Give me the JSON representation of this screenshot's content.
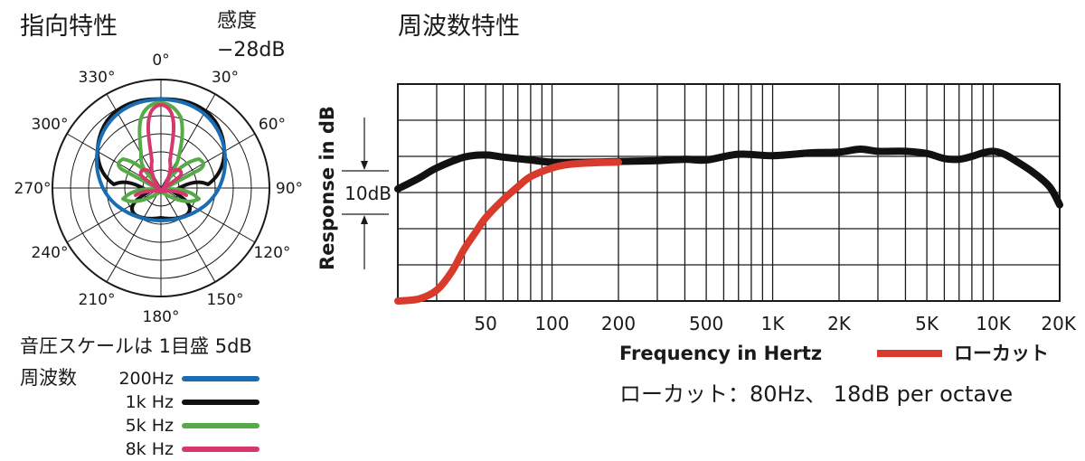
{
  "polar_chart": {
    "title": "指向特性",
    "sensitivity_label": "感度",
    "sensitivity_value": "−28dB",
    "angle_labels": [
      "0°",
      "30°",
      "60°",
      "90°",
      "120°",
      "150°",
      "180°",
      "210°",
      "240°",
      "270°",
      "300°",
      "330°"
    ],
    "scale_note": "音圧スケールは 1目盛 5dB",
    "legend_title": "周波数",
    "legend": [
      {
        "label": "200Hz",
        "color": "#1a6db3"
      },
      {
        "label": "1k Hz",
        "color": "#111111"
      },
      {
        "label": "5k Hz",
        "color": "#56ab48"
      },
      {
        "label": "8k Hz",
        "color": "#d4386c"
      }
    ]
  },
  "chart_data": {
    "type": "line",
    "title": "周波数特性",
    "xlabel": "Frequency in Hertz",
    "ylabel": "Response in dB",
    "x_scale": "log",
    "xlim": [
      20,
      20000
    ],
    "x_ticks": [
      {
        "value": 50,
        "label": "50"
      },
      {
        "value": 100,
        "label": "100"
      },
      {
        "value": 200,
        "label": "200"
      },
      {
        "value": 500,
        "label": "500"
      },
      {
        "value": 1000,
        "label": "1K"
      },
      {
        "value": 2000,
        "label": "2K"
      },
      {
        "value": 5000,
        "label": "5K"
      },
      {
        "value": 10000,
        "label": "10K"
      },
      {
        "value": 20000,
        "label": "20K"
      }
    ],
    "ylim": [
      -20,
      10
    ],
    "scale_marker": "10dB",
    "grid": true,
    "legend_position": "bottom-right",
    "series": [
      {
        "name": "",
        "color": "#111111",
        "x": [
          20,
          25,
          30,
          40,
          50,
          60,
          80,
          100,
          150,
          200,
          300,
          400,
          500,
          700,
          1000,
          1500,
          2000,
          2500,
          3000,
          4000,
          5000,
          6000,
          7000,
          8000,
          9000,
          10000,
          11000,
          12000,
          15000,
          18000,
          20000
        ],
        "y": [
          -4.5,
          -3.0,
          -1.6,
          -0.1,
          0.2,
          -0.1,
          -0.5,
          -0.8,
          -0.8,
          -0.7,
          -0.6,
          -0.4,
          -0.5,
          0.3,
          0.1,
          0.5,
          0.6,
          1.0,
          0.7,
          0.7,
          0.4,
          -0.3,
          -0.4,
          0.0,
          0.5,
          0.7,
          0.4,
          -0.2,
          -2.1,
          -4.2,
          -6.7
        ]
      },
      {
        "name": "ローカット",
        "color": "#d83a2c",
        "x": [
          20,
          25,
          30,
          35,
          40,
          45,
          50,
          60,
          70,
          80,
          100,
          120,
          150,
          200
        ],
        "y": [
          -20,
          -19.7,
          -18.5,
          -16,
          -12.8,
          -10.5,
          -8.5,
          -6.0,
          -4.2,
          -2.8,
          -1.6,
          -1.1,
          -0.9,
          -0.8
        ]
      }
    ],
    "annotation": "ローカット：80Hz、 18dB per octave"
  }
}
